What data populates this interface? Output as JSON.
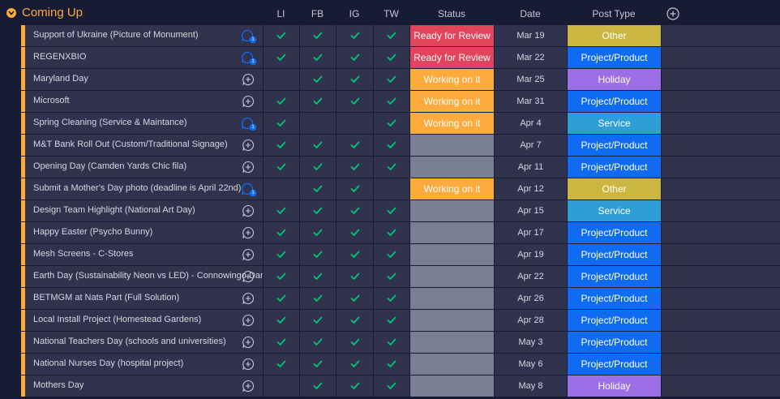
{
  "group": {
    "title": "Coming Up",
    "color": "#fdab3d"
  },
  "columns": {
    "li": "LI",
    "fb": "FB",
    "ig": "IG",
    "tw": "TW",
    "status": "Status",
    "date": "Date",
    "post_type": "Post Type"
  },
  "status_colors": {
    "Ready for Review": "#e2445c",
    "Working on it": "#fdab3d",
    "": "#797e93"
  },
  "type_colors": {
    "Other": "#cab641",
    "Project/Product": "#0f6bf2",
    "Holiday": "#9d6fe6",
    "Service": "#2e9ed6"
  },
  "rows": [
    {
      "name": "Support of Ukraine (Picture of Monument)",
      "updates": 1,
      "li": true,
      "fb": true,
      "ig": true,
      "tw": true,
      "status": "Ready for Review",
      "date": "Mar 19",
      "type": "Other"
    },
    {
      "name": "REGENXBIO",
      "updates": 1,
      "li": true,
      "fb": true,
      "ig": true,
      "tw": true,
      "status": "Ready for Review",
      "date": "Mar 22",
      "type": "Project/Product"
    },
    {
      "name": "Maryland Day",
      "updates": 0,
      "li": false,
      "fb": true,
      "ig": true,
      "tw": true,
      "status": "Working on it",
      "date": "Mar 25",
      "type": "Holiday"
    },
    {
      "name": "Microsoft",
      "updates": 0,
      "li": true,
      "fb": true,
      "ig": true,
      "tw": true,
      "status": "Working on it",
      "date": "Mar 31",
      "type": "Project/Product"
    },
    {
      "name": "Spring Cleaning (Service & Maintance)",
      "updates": 1,
      "li": true,
      "fb": false,
      "ig": false,
      "tw": true,
      "status": "Working on it",
      "date": "Apr 4",
      "type": "Service"
    },
    {
      "name": "M&T Bank Roll Out (Custom/Traditional Signage)",
      "updates": 0,
      "li": true,
      "fb": true,
      "ig": true,
      "tw": true,
      "status": "",
      "date": "Apr 7",
      "type": "Project/Product"
    },
    {
      "name": "Opening Day (Camden Yards Chic fila)",
      "updates": 0,
      "li": true,
      "fb": true,
      "ig": true,
      "tw": true,
      "status": "",
      "date": "Apr 11",
      "type": "Project/Product"
    },
    {
      "name": "Submit a Mother's Day photo (deadline is April 22nd)",
      "updates": 1,
      "li": false,
      "fb": true,
      "ig": true,
      "tw": false,
      "status": "Working on it",
      "date": "Apr 12",
      "type": "Other"
    },
    {
      "name": "Design Team Highlight (National Art Day)",
      "updates": 0,
      "li": true,
      "fb": true,
      "ig": true,
      "tw": true,
      "status": "",
      "date": "Apr 15",
      "type": "Service"
    },
    {
      "name": "Happy Easter (Psycho Bunny)",
      "updates": 0,
      "li": true,
      "fb": true,
      "ig": true,
      "tw": true,
      "status": "",
      "date": "Apr 17",
      "type": "Project/Product"
    },
    {
      "name": "Mesh Screens - C-Stores",
      "updates": 0,
      "li": true,
      "fb": true,
      "ig": true,
      "tw": true,
      "status": "",
      "date": "Apr 19",
      "type": "Project/Product"
    },
    {
      "name": "Earth Day (Sustainability Neon vs LED) - Connowingo Dam",
      "updates": 0,
      "li": true,
      "fb": true,
      "ig": true,
      "tw": true,
      "status": "",
      "date": "Apr 22",
      "type": "Project/Product"
    },
    {
      "name": "BETMGM at Nats Part (Full Solution)",
      "updates": 0,
      "li": true,
      "fb": true,
      "ig": true,
      "tw": true,
      "status": "",
      "date": "Apr 26",
      "type": "Project/Product"
    },
    {
      "name": "Local Install Project (Homestead Gardens)",
      "updates": 0,
      "li": true,
      "fb": true,
      "ig": true,
      "tw": true,
      "status": "",
      "date": "Apr 28",
      "type": "Project/Product"
    },
    {
      "name": "National Teachers Day (schools and universities)",
      "updates": 0,
      "li": true,
      "fb": true,
      "ig": true,
      "tw": true,
      "status": "",
      "date": "May 3",
      "type": "Project/Product"
    },
    {
      "name": "National Nurses Day (hospital project)",
      "updates": 0,
      "li": true,
      "fb": true,
      "ig": true,
      "tw": true,
      "status": "",
      "date": "May 6",
      "type": "Project/Product"
    },
    {
      "name": "Mothers Day",
      "updates": 0,
      "li": false,
      "fb": true,
      "ig": true,
      "tw": true,
      "status": "",
      "date": "May 8",
      "type": "Holiday"
    }
  ]
}
